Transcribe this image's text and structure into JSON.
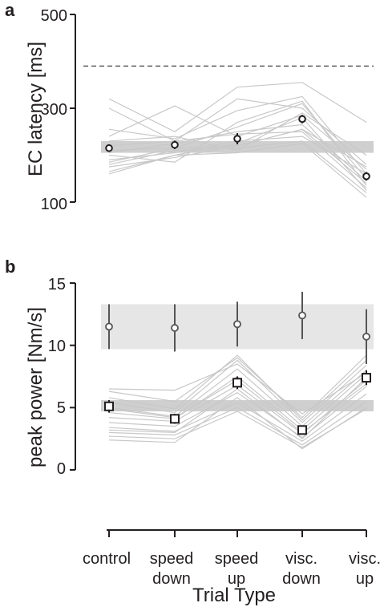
{
  "figure": {
    "panel_a_label": "a",
    "panel_b_label": "b",
    "x_title": "Trial Type",
    "categories": [
      [
        "control"
      ],
      [
        "speed",
        "down"
      ],
      [
        "speed",
        "up"
      ],
      [
        "visc.",
        "down"
      ],
      [
        "visc.",
        "up"
      ]
    ]
  },
  "chart_data": [
    {
      "panel": "a",
      "type": "line",
      "ylabel": "EC latency [ms]",
      "ylim": [
        100,
        500
      ],
      "yticks": [
        "100",
        "300",
        "500"
      ],
      "reference_line": 390,
      "shaded_band": [
        205,
        230
      ],
      "series": [
        {
          "values": [
            210,
            215,
            220,
            255,
            175
          ]
        },
        {
          "values": [
            190,
            205,
            230,
            240,
            160
          ]
        },
        {
          "values": [
            205,
            225,
            250,
            265,
            145
          ]
        },
        {
          "values": [
            180,
            210,
            215,
            230,
            120
          ]
        },
        {
          "values": [
            220,
            230,
            245,
            250,
            130
          ]
        },
        {
          "values": [
            255,
            235,
            295,
            325,
            160
          ]
        },
        {
          "values": [
            175,
            195,
            220,
            255,
            140
          ]
        },
        {
          "values": [
            165,
            200,
            205,
            225,
            110
          ]
        },
        {
          "values": [
            240,
            305,
            240,
            285,
            170
          ]
        },
        {
          "values": [
            320,
            250,
            345,
            355,
            270
          ]
        },
        {
          "values": [
            300,
            230,
            320,
            300,
            180
          ]
        },
        {
          "values": [
            200,
            185,
            270,
            315,
            135
          ]
        },
        {
          "values": [
            185,
            215,
            260,
            310,
            150
          ]
        },
        {
          "values": [
            230,
            240,
            210,
            290,
            200
          ]
        },
        {
          "values": [
            160,
            200,
            225,
            280,
            125
          ]
        }
      ],
      "means": [
        215,
        222,
        235,
        277,
        155
      ],
      "errors": [
        8,
        9,
        12,
        9,
        9
      ],
      "marker": "circle"
    },
    {
      "panel": "b",
      "type": "line",
      "ylabel": "peak power [Nm/s]",
      "ylim": [
        0,
        15
      ],
      "yticks": [
        "0",
        "5",
        "10",
        "15"
      ],
      "shaded_bands": [
        [
          4.7,
          5.6
        ],
        [
          9.7,
          13.3
        ]
      ],
      "series": [
        {
          "values": [
            3.0,
            2.8,
            5.0,
            2.0,
            5.5
          ]
        },
        {
          "values": [
            2.7,
            2.5,
            4.7,
            1.8,
            4.9
          ]
        },
        {
          "values": [
            3.4,
            3.1,
            5.4,
            2.3,
            6.1
          ]
        },
        {
          "values": [
            3.8,
            3.5,
            6.2,
            2.6,
            6.7
          ]
        },
        {
          "values": [
            4.2,
            3.9,
            6.8,
            2.9,
            7.2
          ]
        },
        {
          "values": [
            4.6,
            4.1,
            7.5,
            3.2,
            7.7
          ]
        },
        {
          "values": [
            5.0,
            4.3,
            8.1,
            3.5,
            8.0
          ]
        },
        {
          "values": [
            5.4,
            4.6,
            8.8,
            3.8,
            8.4
          ]
        },
        {
          "values": [
            5.8,
            4.9,
            9.2,
            4.0,
            8.8
          ]
        },
        {
          "values": [
            6.3,
            5.5,
            9.0,
            4.2,
            9.2
          ]
        },
        {
          "values": [
            6.5,
            6.4,
            8.5,
            4.5,
            7.8
          ]
        },
        {
          "values": [
            2.4,
            2.2,
            5.8,
            1.7,
            5.0
          ]
        },
        {
          "values": [
            3.2,
            3.0,
            6.5,
            2.5,
            7.4
          ]
        },
        {
          "values": [
            4.9,
            4.2,
            7.2,
            3.0,
            6.9
          ]
        }
      ],
      "means": [
        5.1,
        4.1,
        7.0,
        3.2,
        7.4
      ],
      "errors": [
        0.5,
        0.4,
        0.5,
        0.3,
        0.6
      ],
      "marker": "square",
      "secondary": {
        "means": [
          11.5,
          11.4,
          11.7,
          12.4,
          10.7
        ],
        "errors": [
          1.8,
          1.9,
          1.8,
          1.9,
          2.2
        ],
        "marker": "circle"
      }
    }
  ]
}
